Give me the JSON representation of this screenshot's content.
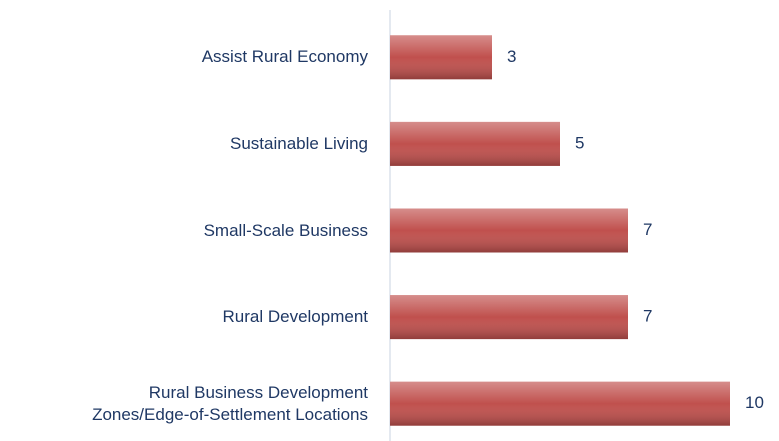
{
  "chart_data": {
    "type": "barh",
    "categories": [
      "Assist Rural Economy",
      "Sustainable Living",
      "Small-Scale Business",
      "Rural Development",
      "Rural Business Development\nZones/Edge-of-Settlement Locations"
    ],
    "values": [
      3,
      5,
      7,
      7,
      10
    ],
    "color": "#c0504d",
    "xlim": [
      0,
      10
    ]
  }
}
